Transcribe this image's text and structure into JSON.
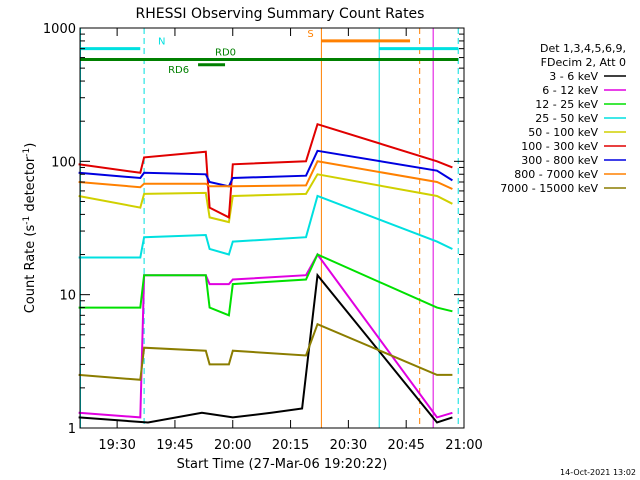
{
  "chart_data": {
    "type": "line",
    "title": "RHESSI Observing Summary Count Rates",
    "xlabel": "Start Time (27-Mar-06 19:20:22)",
    "ylabel": "Count Rate (s⁻¹ detector⁻¹)",
    "ylabel_parts": {
      "main": "Count Rate (s",
      "exp1": "-1",
      "mid": " detector",
      "exp2": "-1",
      "tail": ")"
    },
    "y_scale": "log",
    "ylim": [
      1,
      1000
    ],
    "xlim": [
      "19:20:22",
      "21:00:00"
    ],
    "x_ticks": [
      "19:30",
      "19:45",
      "20:00",
      "20:15",
      "20:30",
      "20:45",
      "21:00"
    ],
    "y_ticks": [
      "1",
      "10",
      "100",
      "1000"
    ],
    "legend": {
      "placement": "right",
      "header": [
        "Det 1,3,4,5,6,9,",
        "FDecim 2, Att 0"
      ]
    },
    "series": [
      {
        "name": "3 - 6 keV",
        "color": "#000000",
        "points": [
          [
            "19:20",
            "1.2"
          ],
          [
            "19:38",
            "1.1"
          ],
          [
            "19:52",
            "1.3"
          ],
          [
            "20:00",
            "1.2"
          ],
          [
            "20:10",
            "1.3"
          ],
          [
            "20:18",
            "1.4"
          ],
          [
            "20:22",
            "14"
          ],
          [
            "20:53",
            "1.1"
          ],
          [
            "20:57",
            "1.2"
          ]
        ]
      },
      {
        "name": "6 - 12 keV",
        "color": "#e000e0",
        "points": [
          [
            "19:20",
            "1.3"
          ],
          [
            "19:36",
            "1.2"
          ],
          [
            "19:37",
            "14"
          ],
          [
            "19:53",
            "14"
          ],
          [
            "19:54",
            "12"
          ],
          [
            "19:59",
            "12"
          ],
          [
            "20:00",
            "13"
          ],
          [
            "20:19",
            "14"
          ],
          [
            "20:22",
            "20"
          ],
          [
            "20:53",
            "1.2"
          ],
          [
            "20:57",
            "1.3"
          ]
        ]
      },
      {
        "name": "12 - 25 keV",
        "color": "#00e000",
        "points": [
          [
            "19:20",
            "8"
          ],
          [
            "19:36",
            "8"
          ],
          [
            "19:37",
            "14"
          ],
          [
            "19:53",
            "14"
          ],
          [
            "19:54",
            "8"
          ],
          [
            "19:59",
            "7"
          ],
          [
            "20:00",
            "12"
          ],
          [
            "20:19",
            "13"
          ],
          [
            "20:22",
            "20"
          ],
          [
            "20:53",
            "8"
          ],
          [
            "20:57",
            "7.5"
          ]
        ]
      },
      {
        "name": "25 - 50 keV",
        "color": "#00e0e0",
        "points": [
          [
            "19:20",
            "19"
          ],
          [
            "19:36",
            "19"
          ],
          [
            "19:37",
            "27"
          ],
          [
            "19:53",
            "28"
          ],
          [
            "19:54",
            "22"
          ],
          [
            "19:59",
            "20"
          ],
          [
            "20:00",
            "25"
          ],
          [
            "20:19",
            "27"
          ],
          [
            "20:22",
            "55"
          ],
          [
            "20:53",
            "25"
          ],
          [
            "20:57",
            "22"
          ]
        ]
      },
      {
        "name": "50 - 100 keV",
        "color": "#d0d000",
        "points": [
          [
            "19:20",
            "55"
          ],
          [
            "19:36",
            "45"
          ],
          [
            "19:37",
            "57"
          ],
          [
            "19:53",
            "58"
          ],
          [
            "19:54",
            "38"
          ],
          [
            "19:59",
            "35"
          ],
          [
            "20:00",
            "55"
          ],
          [
            "20:19",
            "57"
          ],
          [
            "20:22",
            "80"
          ],
          [
            "20:53",
            "55"
          ],
          [
            "20:57",
            "48"
          ]
        ]
      },
      {
        "name": "100 - 300 keV",
        "color": "#e00000",
        "points": [
          [
            "19:20",
            "95"
          ],
          [
            "19:36",
            "82"
          ],
          [
            "19:37",
            "107"
          ],
          [
            "19:53",
            "118"
          ],
          [
            "19:54",
            "45"
          ],
          [
            "19:59",
            "38"
          ],
          [
            "20:00",
            "95"
          ],
          [
            "20:19",
            "100"
          ],
          [
            "20:22",
            "190"
          ],
          [
            "20:53",
            "100"
          ],
          [
            "20:57",
            "90"
          ]
        ]
      },
      {
        "name": "300 - 800 keV",
        "color": "#0000e0",
        "points": [
          [
            "19:20",
            "82"
          ],
          [
            "19:36",
            "75"
          ],
          [
            "19:37",
            "82"
          ],
          [
            "19:53",
            "80"
          ],
          [
            "19:54",
            "70"
          ],
          [
            "19:59",
            "65"
          ],
          [
            "20:00",
            "75"
          ],
          [
            "20:19",
            "78"
          ],
          [
            "20:22",
            "120"
          ],
          [
            "20:53",
            "85"
          ],
          [
            "20:57",
            "72"
          ]
        ]
      },
      {
        "name": "800 - 7000 keV",
        "color": "#ff8000",
        "points": [
          [
            "19:20",
            "70"
          ],
          [
            "19:36",
            "64"
          ],
          [
            "19:37",
            "68"
          ],
          [
            "19:53",
            "68"
          ],
          [
            "19:54",
            "65"
          ],
          [
            "19:59",
            "65"
          ],
          [
            "20:00",
            "65"
          ],
          [
            "20:19",
            "66"
          ],
          [
            "20:22",
            "100"
          ],
          [
            "20:53",
            "70"
          ],
          [
            "20:57",
            "62"
          ]
        ]
      },
      {
        "name": "7000 - 15000 keV",
        "color": "#8b7d00",
        "points": [
          [
            "19:20",
            "2.5"
          ],
          [
            "19:36",
            "2.3"
          ],
          [
            "19:37",
            "4"
          ],
          [
            "19:53",
            "3.8"
          ],
          [
            "19:54",
            "3"
          ],
          [
            "19:59",
            "3"
          ],
          [
            "20:00",
            "3.8"
          ],
          [
            "20:19",
            "3.5"
          ],
          [
            "20:22",
            "6"
          ],
          [
            "20:53",
            "2.5"
          ],
          [
            "20:57",
            "2.5"
          ]
        ]
      }
    ],
    "vertical_lines": [
      {
        "time": "19:20:30",
        "color": "#00e0e0",
        "style": "solid"
      },
      {
        "time": "19:37:00",
        "color": "#00e0e0",
        "style": "dashed"
      },
      {
        "time": "20:23:00",
        "color": "#ff8000",
        "style": "solid"
      },
      {
        "time": "20:38:00",
        "color": "#00e0e0",
        "style": "solid"
      },
      {
        "time": "20:48:30",
        "color": "#ff8000",
        "style": "dashed"
      },
      {
        "time": "20:52:00",
        "color": "#e000e0",
        "style": "solid"
      },
      {
        "time": "20:58:30",
        "color": "#00e0e0",
        "style": "dashed"
      }
    ],
    "flag_bars": [
      {
        "label": "N",
        "color": "#00e0e0",
        "y_level": "700",
        "spans": [
          [
            "19:20:22",
            "19:36:00"
          ],
          [
            "20:38:00",
            "20:58:30"
          ]
        ]
      },
      {
        "label": "S",
        "color": "#ff8000",
        "y_level": "800",
        "spans": [
          [
            "20:23:00",
            "20:46:00"
          ]
        ]
      },
      {
        "label": "RD0",
        "color": "#008000",
        "y_level": "580",
        "spans": [
          [
            "19:20:22",
            "20:58:30"
          ]
        ]
      },
      {
        "label": "RD6",
        "color": "#008000",
        "y_level": "530",
        "spans": [
          [
            "19:51:00",
            "19:58:00"
          ]
        ]
      }
    ]
  },
  "footer": {
    "timestamp": "14-Oct-2021 13:02"
  }
}
